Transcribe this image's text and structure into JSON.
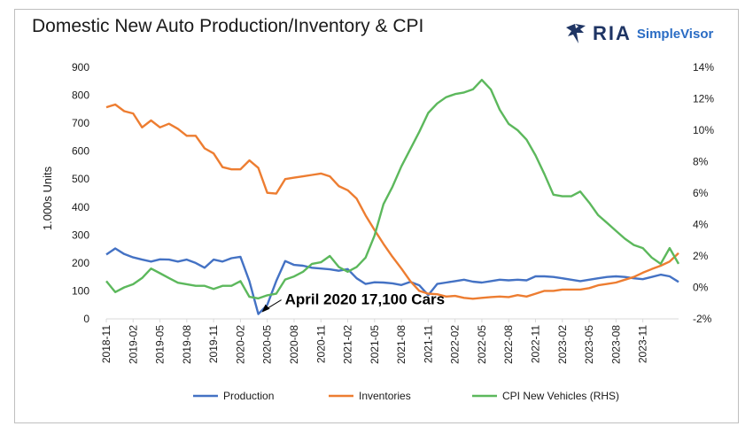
{
  "header": {
    "title": "Domestic New Auto Production/Inventory & CPI",
    "logo_text": "RIA",
    "logo_subtext": "SimpleVisor"
  },
  "chart_data": {
    "type": "line",
    "title": "Domestic New Auto Production/Inventory & CPI",
    "ylabel": "1.000s Units",
    "ylim": [
      0,
      900
    ],
    "y2lim": [
      -2,
      14
    ],
    "y_ticks": [
      0,
      100,
      200,
      300,
      400,
      500,
      600,
      700,
      800,
      900
    ],
    "y2_ticks": [
      "-2%",
      "0%",
      "2%",
      "4%",
      "6%",
      "8%",
      "10%",
      "12%",
      "14%"
    ],
    "y2_tick_values": [
      -2,
      0,
      2,
      4,
      6,
      8,
      10,
      12,
      14
    ],
    "x_tick_labels": [
      "2018-11",
      "2019-02",
      "2019-05",
      "2019-08",
      "2019-11",
      "2020-02",
      "2020-05",
      "2020-08",
      "2020-11",
      "2021-02",
      "2021-05",
      "2021-08",
      "2021-11",
      "2022-02",
      "2022-05",
      "2022-08",
      "2022-11",
      "2023-02",
      "2023-05",
      "2023-08",
      "2023-11"
    ],
    "x_start": "2018-11",
    "x_end": "2023-11",
    "grid": false,
    "legend_position": "bottom",
    "annotation": {
      "text": "April 2020 17,100 Cars",
      "x": "2020-04",
      "y": 17.1
    },
    "colors": {
      "Production": "#4472c4",
      "Inventories": "#ed7d31",
      "CPI New Vehicles (RHS)": "#5cb85c"
    },
    "series": [
      {
        "name": "Production",
        "axis": "left",
        "color": "#4472c4",
        "values": [
          230,
          252,
          232,
          220,
          212,
          205,
          213,
          212,
          205,
          212,
          200,
          183,
          212,
          205,
          217,
          222,
          135,
          17.1,
          50,
          135,
          207,
          193,
          190,
          183,
          180,
          177,
          172,
          178,
          145,
          125,
          131,
          130,
          127,
          121,
          132,
          120,
          85,
          125,
          130,
          135,
          140,
          133,
          130,
          135,
          140,
          138,
          140,
          138,
          152,
          152,
          150,
          145,
          140,
          135,
          140,
          145,
          150,
          152,
          150,
          145,
          142,
          150,
          158,
          152,
          132
        ]
      },
      {
        "name": "Inventories",
        "axis": "left",
        "color": "#ed7d31",
        "values": [
          757,
          767,
          743,
          735,
          685,
          710,
          685,
          698,
          680,
          655,
          655,
          610,
          592,
          543,
          535,
          535,
          567,
          540,
          451,
          448,
          500,
          505,
          510,
          515,
          520,
          510,
          475,
          460,
          430,
          370,
          318,
          268,
          222,
          180,
          135,
          100,
          90,
          88,
          80,
          82,
          75,
          72,
          75,
          78,
          80,
          78,
          85,
          80,
          90,
          100,
          100,
          105,
          105,
          105,
          110,
          120,
          125,
          130,
          140,
          150,
          165,
          178,
          190,
          205,
          235
        ]
      },
      {
        "name": "CPI New Vehicles (RHS)",
        "axis": "right",
        "color": "#5cb85c",
        "values": [
          0.4,
          -0.3,
          0.0,
          0.2,
          0.6,
          1.2,
          0.9,
          0.6,
          0.3,
          0.2,
          0.1,
          0.1,
          -0.1,
          0.1,
          0.1,
          0.4,
          -0.6,
          -0.7,
          -0.5,
          -0.4,
          0.5,
          0.7,
          1.0,
          1.5,
          1.6,
          2.0,
          1.3,
          1.0,
          1.3,
          1.9,
          3.3,
          5.3,
          6.4,
          7.7,
          8.8,
          9.9,
          11.1,
          11.7,
          12.1,
          12.3,
          12.4,
          12.6,
          13.2,
          12.6,
          11.3,
          10.4,
          10.0,
          9.4,
          8.4,
          7.2,
          5.9,
          5.8,
          5.8,
          6.1,
          5.4,
          4.6,
          4.1,
          3.6,
          3.1,
          2.7,
          2.5,
          1.9,
          1.5,
          2.5,
          1.5
        ]
      }
    ]
  }
}
